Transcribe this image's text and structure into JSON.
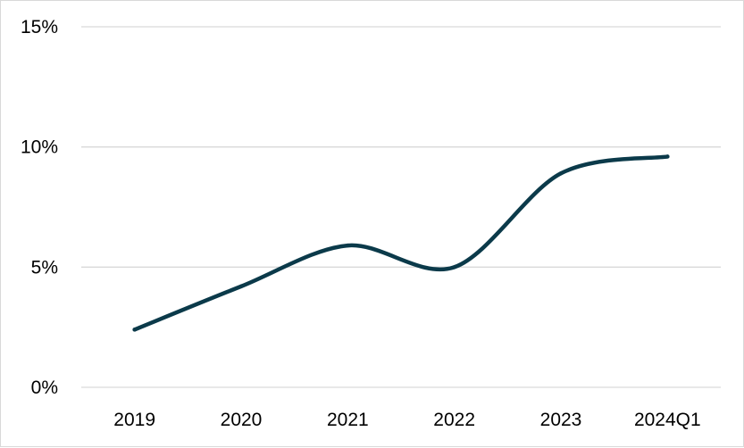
{
  "chart_data": {
    "type": "line",
    "title": "",
    "xlabel": "",
    "ylabel": "",
    "categories": [
      "2019",
      "2020",
      "2021",
      "2022",
      "2023",
      "2024Q1"
    ],
    "series": [
      {
        "values": [
          2.4,
          4.2,
          5.9,
          5.0,
          8.9,
          9.6
        ]
      }
    ],
    "ylim": [
      0,
      15
    ],
    "yticks": [
      0,
      5,
      10,
      15
    ],
    "ytick_labels": [
      "0%",
      "5%",
      "10%",
      "15%"
    ],
    "smooth": true,
    "grid": "horizontal",
    "legend": "none",
    "colors": {
      "line": "#0b3a4a",
      "grid": "#d9d9d9",
      "text": "#000000"
    }
  }
}
